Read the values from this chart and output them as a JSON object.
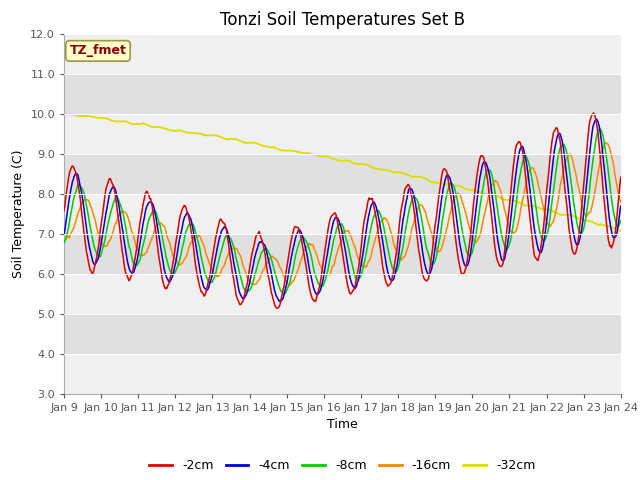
{
  "title": "Tonzi Soil Temperatures Set B",
  "xlabel": "Time",
  "ylabel": "Soil Temperature (C)",
  "annotation": "TZ_fmet",
  "ylim": [
    3.0,
    12.0
  ],
  "yticks": [
    3.0,
    4.0,
    5.0,
    6.0,
    7.0,
    8.0,
    9.0,
    10.0,
    11.0,
    12.0
  ],
  "series": [
    {
      "label": "-2cm",
      "color": "#dd0000",
      "linewidth": 1.1
    },
    {
      "label": "-4cm",
      "color": "#0000dd",
      "linewidth": 1.1
    },
    {
      "label": "-8cm",
      "color": "#00cc00",
      "linewidth": 1.1
    },
    {
      "label": "-16cm",
      "color": "#ff8800",
      "linewidth": 1.1
    },
    {
      "label": "-32cm",
      "color": "#dddd00",
      "linewidth": 1.3
    }
  ],
  "bg_color": "#ffffff",
  "plot_bg_color": "#e8e8e8",
  "grid_color": "#ffffff",
  "title_fontsize": 12,
  "label_fontsize": 9,
  "tick_fontsize": 8,
  "legend_fontsize": 9,
  "xtick_labels": [
    "Jan 9",
    "Jan 10",
    "Jan 11",
    "Jan 12",
    "Jan 13",
    "Jan 14",
    "Jan 15",
    "Jan 16",
    "Jan 17",
    "Jan 18",
    "Jan 19",
    "Jan 20",
    "Jan 21",
    "Jan 22",
    "Jan 23",
    "Jan 24"
  ]
}
